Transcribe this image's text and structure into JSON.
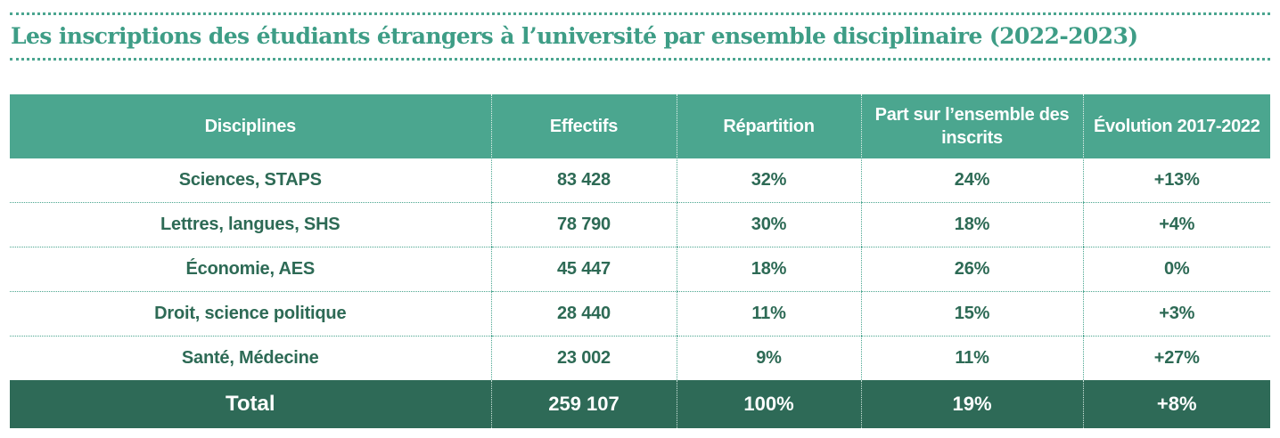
{
  "title": "Les inscriptions des étudiants étrangers à l’université par ensemble disciplinaire (2022-2023)",
  "colors": {
    "accent": "#4ba68f",
    "title": "#3e9d86",
    "body_text": "#2d6a55",
    "total_bg": "#2e6a57"
  },
  "table": {
    "headers": {
      "discipline": "Disciplines",
      "effectifs": "Effectifs",
      "repartition": "Répartition",
      "part": "Part sur l’ensemble des inscrits",
      "evolution": "Évolution 2017-2022"
    },
    "rows": [
      {
        "discipline": "Sciences, STAPS",
        "effectifs": "83 428",
        "repartition": "32%",
        "part": "24%",
        "evolution": "+13%"
      },
      {
        "discipline": "Lettres, langues, SHS",
        "effectifs": "78 790",
        "repartition": "30%",
        "part": "18%",
        "evolution": "+4%"
      },
      {
        "discipline": "Économie, AES",
        "effectifs": "45 447",
        "repartition": "18%",
        "part": "26%",
        "evolution": "0%"
      },
      {
        "discipline": "Droit, science politique",
        "effectifs": "28 440",
        "repartition": "11%",
        "part": "15%",
        "evolution": "+3%"
      },
      {
        "discipline": "Santé, Médecine",
        "effectifs": "23 002",
        "repartition": "9%",
        "part": "11%",
        "evolution": "+27%"
      }
    ],
    "total": {
      "label": "Total",
      "effectifs": "259 107",
      "repartition": "100%",
      "part": "19%",
      "evolution": "+8%"
    }
  }
}
